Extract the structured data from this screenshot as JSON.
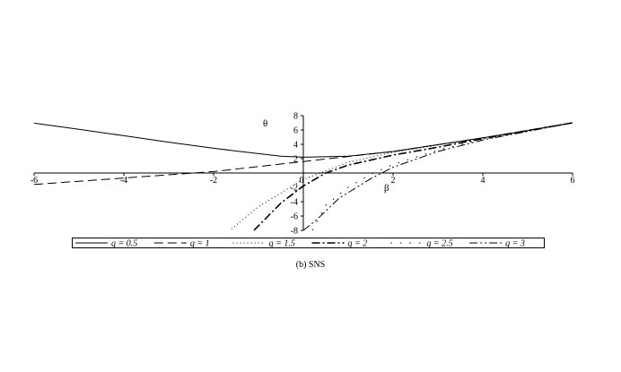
{
  "chart_data": {
    "type": "line",
    "xlabel": "β",
    "ylabel": "θ",
    "xlim": [
      -6,
      6
    ],
    "ylim": [
      -8,
      8
    ],
    "x_ticks": [
      "-6",
      "-4",
      "-2",
      "0",
      "2",
      "4",
      "6"
    ],
    "y_ticks": [
      "8",
      "6",
      "4",
      "2",
      "-2",
      "-4",
      "-6",
      "-8"
    ],
    "legend": "bottom",
    "series": [
      {
        "name": "q = 0.5",
        "dash": "solid",
        "x": [
          -6,
          -5,
          -4,
          -3,
          -2,
          -1,
          -0.5,
          0,
          1,
          2,
          3,
          4,
          5,
          6
        ],
        "y": [
          6.95,
          6.1,
          5.2,
          4.3,
          3.45,
          2.7,
          2.35,
          2.2,
          2.35,
          3.0,
          3.95,
          4.9,
          5.9,
          7.0
        ]
      },
      {
        "name": "q = 1",
        "dash": "long",
        "x": [
          -6,
          -4,
          -2,
          0,
          2,
          4,
          6
        ],
        "y": [
          -1.6,
          -0.7,
          0.2,
          1.6,
          3.0,
          4.9,
          7.0
        ]
      },
      {
        "name": "q = 1.5",
        "dash": "dot",
        "x": [
          -1.6,
          -1,
          0,
          1,
          2,
          4,
          6
        ],
        "y": [
          -7.8,
          -4.7,
          -0.9,
          1.5,
          2.9,
          4.9,
          7.0
        ]
      },
      {
        "name": "q = 2",
        "dash": "dashdot",
        "x": [
          -1.1,
          -0.5,
          0,
          0.5,
          1,
          2,
          3,
          4,
          6
        ],
        "y": [
          -8.0,
          -4.2,
          -1.8,
          0.0,
          1.1,
          2.5,
          3.6,
          4.8,
          7.0
        ]
      },
      {
        "name": "q = 2.5",
        "dash": "sparse",
        "x": [
          0.2,
          0.5,
          1,
          1.5,
          2,
          3,
          4,
          6
        ],
        "y": [
          -8.0,
          -4.5,
          -2.0,
          -0.2,
          1.2,
          3.2,
          4.7,
          7.0
        ]
      },
      {
        "name": "q = 3",
        "dash": "dashdotdot",
        "x": [
          0.0,
          0.3,
          0.8,
          1.5,
          2,
          3,
          4,
          6
        ],
        "y": [
          -8.0,
          -6.5,
          -3.5,
          -0.8,
          0.8,
          3.0,
          4.6,
          7.0
        ]
      }
    ]
  },
  "caption": "(b) SNS"
}
